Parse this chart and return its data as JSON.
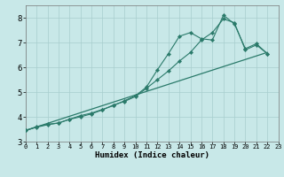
{
  "xlabel": "Humidex (Indice chaleur)",
  "bg_color": "#c8e8e8",
  "grid_color": "#a8cece",
  "line_color": "#2a7a6a",
  "marker_color": "#2a7a6a",
  "xlim": [
    0,
    23
  ],
  "ylim": [
    3,
    8.5
  ],
  "yticks": [
    3,
    4,
    5,
    6,
    7,
    8
  ],
  "xticks": [
    0,
    1,
    2,
    3,
    4,
    5,
    6,
    7,
    8,
    9,
    10,
    11,
    12,
    13,
    14,
    15,
    16,
    17,
    18,
    19,
    20,
    21,
    22,
    23
  ],
  "series1_x": [
    0,
    1,
    2,
    3,
    4,
    5,
    6,
    7,
    8,
    9,
    10,
    11,
    12,
    13,
    14,
    15,
    16,
    17,
    18,
    19,
    20,
    21,
    22
  ],
  "series1_y": [
    3.45,
    3.6,
    3.7,
    3.75,
    3.9,
    4.05,
    4.15,
    4.3,
    4.45,
    4.65,
    4.85,
    5.2,
    5.9,
    6.55,
    7.25,
    7.4,
    7.15,
    7.1,
    8.1,
    7.75,
    6.75,
    6.95,
    6.55
  ],
  "series2_x": [
    0,
    1,
    2,
    3,
    4,
    5,
    6,
    7,
    8,
    9,
    10,
    11,
    12,
    13,
    14,
    15,
    16,
    17,
    18,
    19,
    20,
    21,
    22
  ],
  "series2_y": [
    3.45,
    3.58,
    3.68,
    3.75,
    3.9,
    4.0,
    4.12,
    4.28,
    4.48,
    4.62,
    4.82,
    5.15,
    5.5,
    5.85,
    6.25,
    6.6,
    7.1,
    7.4,
    7.95,
    7.8,
    6.7,
    6.9,
    6.55
  ],
  "series3_x": [
    0,
    22
  ],
  "series3_y": [
    3.45,
    6.6
  ],
  "xlabel_fontsize": 6.5,
  "xtick_fontsize": 5.0,
  "ytick_fontsize": 6.5
}
